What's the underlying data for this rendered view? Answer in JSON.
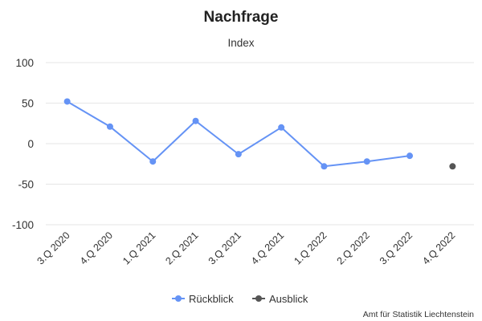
{
  "chart_data": {
    "type": "line",
    "title": "Nachfrage",
    "subtitle": "Index",
    "categories": [
      "3.Q 2020",
      "4.Q 2020",
      "1.Q 2021",
      "2.Q 2021",
      "3.Q 2021",
      "4.Q 2021",
      "1.Q 2022",
      "2.Q 2022",
      "3.Q 2022",
      "4.Q 2022"
    ],
    "ylim": [
      -100,
      100
    ],
    "yticks": [
      100,
      50,
      0,
      -50,
      -100
    ],
    "grid": true,
    "legend_position": "bottom-center",
    "series": [
      {
        "name": "Rückblick",
        "color": "#6593f5",
        "values": [
          52,
          21,
          -22,
          28,
          -13,
          20,
          -28,
          -22,
          -15,
          null
        ]
      },
      {
        "name": "Ausblick",
        "color": "#555555",
        "values": [
          null,
          null,
          null,
          null,
          null,
          null,
          null,
          null,
          null,
          -28
        ]
      }
    ]
  },
  "credits": "Amt für Statistik Liechtenstein"
}
